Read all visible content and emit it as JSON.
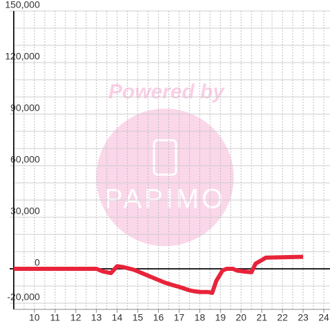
{
  "chart_data": {
    "type": "line",
    "watermark": {
      "line1": "Powered by",
      "line2": "PAPIMO"
    },
    "x": [
      9,
      13,
      13.3,
      13.7,
      14,
      14.3,
      14.8,
      15.3,
      15.7,
      16,
      16.3,
      16.7,
      17,
      17.5,
      17.7,
      18,
      18.4,
      18.6,
      18.8,
      19.1,
      19.3,
      19.6,
      19.8,
      20.1,
      20.5,
      20.7,
      21.2,
      23
    ],
    "series": [
      {
        "color": "#e8233a",
        "values": [
          0,
          0,
          -1500,
          -2500,
          1500,
          1000,
          -500,
          -3000,
          -5000,
          -6500,
          -8000,
          -9500,
          -10500,
          -12500,
          -13000,
          -13500,
          -13500,
          -14000,
          -7000,
          -1000,
          0,
          0,
          -1000,
          -1500,
          -2000,
          3000,
          6500,
          7000
        ]
      }
    ],
    "xlim": [
      9,
      24.3
    ],
    "xticks": [
      10,
      11,
      12,
      13,
      14,
      15,
      16,
      17,
      18,
      19,
      20,
      21,
      22,
      23,
      24
    ],
    "xgrid": [
      9.5,
      10,
      10.5,
      11,
      11.5,
      12,
      12.5,
      13,
      13.5,
      14,
      14.5,
      15,
      15.5,
      16,
      16.5,
      17,
      17.5,
      18,
      18.5,
      19,
      19.5,
      20,
      20.5,
      21,
      21.5,
      22,
      22.5,
      23,
      23.5,
      24
    ],
    "ylim": [
      -20000,
      150000
    ],
    "yticks": [
      {
        "value": -20000,
        "label": "-20,000"
      },
      0,
      {
        "value": 30000,
        "label": "30,000"
      },
      {
        "value": 60000,
        "label": "60,000"
      },
      {
        "value": 90000,
        "label": "90,000"
      },
      {
        "value": 120000,
        "label": "120,000"
      },
      {
        "value": 150000,
        "label": "150,000"
      }
    ],
    "ygrid": [
      -10000,
      10000,
      20000,
      40000,
      50000,
      70000,
      80000,
      100000,
      110000,
      130000,
      140000
    ],
    "grid": true
  }
}
